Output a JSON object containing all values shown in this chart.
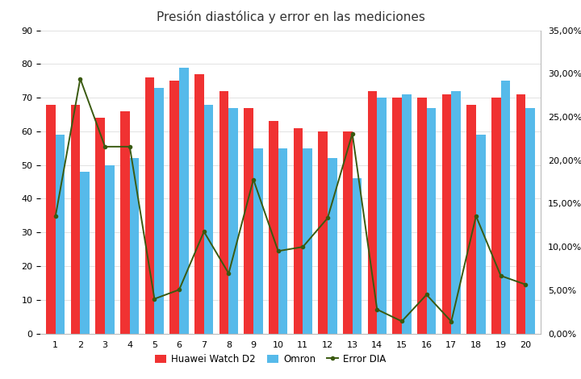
{
  "title": "Presión diastólica y error en las mediciones",
  "categories": [
    1,
    2,
    3,
    4,
    5,
    6,
    7,
    8,
    9,
    10,
    11,
    12,
    13,
    14,
    15,
    16,
    17,
    18,
    19,
    20
  ],
  "huawei": [
    68,
    68,
    64,
    66,
    76,
    75,
    77,
    72,
    67,
    63,
    61,
    60,
    60,
    72,
    70,
    70,
    71,
    68,
    70,
    71
  ],
  "omron": [
    59,
    48,
    50,
    52,
    73,
    79,
    68,
    67,
    55,
    55,
    55,
    52,
    46,
    70,
    71,
    67,
    72,
    59,
    75,
    67
  ],
  "error_dia": [
    0.1356,
    0.2941,
    0.2157,
    0.2157,
    0.04,
    0.0506,
    0.1176,
    0.0694,
    0.1778,
    0.0952,
    0.1,
    0.1333,
    0.2308,
    0.0278,
    0.0141,
    0.0448,
    0.0139,
    0.1356,
    0.0667,
    0.0566
  ],
  "bar_color_huawei": "#F03232",
  "bar_color_omron": "#56BAEA",
  "line_color_error": "#3A5A10",
  "ylim_left": [
    0,
    90
  ],
  "ylim_right": [
    0.0,
    0.35
  ],
  "yticks_left": [
    0,
    10,
    20,
    30,
    40,
    50,
    60,
    70,
    80,
    90
  ],
  "yticks_right": [
    0.0,
    0.05,
    0.1,
    0.15,
    0.2,
    0.25,
    0.3,
    0.35
  ],
  "legend_labels": [
    "Huawei Watch D2",
    "Omron",
    "Error DIA"
  ],
  "background_color": "#FFFFFF",
  "grid_color": "#DDDDDD",
  "title_fontsize": 11,
  "tick_fontsize": 8,
  "bar_width": 0.38
}
